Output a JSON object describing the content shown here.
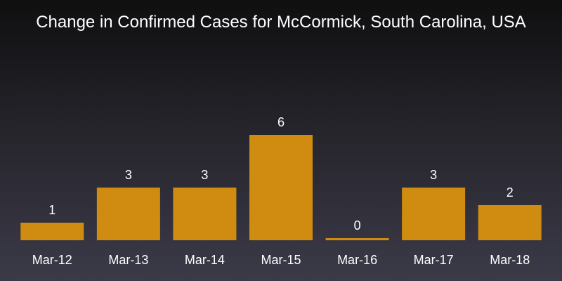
{
  "chart_data": {
    "type": "bar",
    "title": "Change in Confirmed Cases for McCormick, South Carolina, USA",
    "xlabel": "",
    "ylabel": "",
    "categories": [
      "Mar-12",
      "Mar-13",
      "Mar-14",
      "Mar-15",
      "Mar-16",
      "Mar-17",
      "Mar-18"
    ],
    "values": [
      1,
      3,
      3,
      6,
      0,
      3,
      2
    ],
    "data_labels": true,
    "grid": false,
    "colors": {
      "bar": "#d08c10",
      "text": "#ffffff",
      "background_top": "#0f0f10",
      "background_bottom": "#3b3a48"
    }
  }
}
